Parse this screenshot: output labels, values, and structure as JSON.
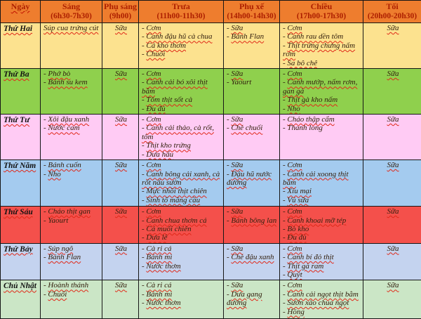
{
  "table": {
    "columns": [
      {
        "label": "Ngày",
        "time": ""
      },
      {
        "label": "Sáng",
        "time": "(6h30-7h30)"
      },
      {
        "label": "Phụ sáng",
        "time": "(9h00)"
      },
      {
        "label": "Trưa",
        "time": "(11h00-11h30)"
      },
      {
        "label": "Phụ xế",
        "time": "(14h00-14h30)"
      },
      {
        "label": "Chiều",
        "time": "(17h00-17h30)"
      },
      {
        "label": "Tối",
        "time": "(20h00-20h30)"
      }
    ],
    "rows": [
      {
        "day": "Thứ Hai",
        "color": "#FCE28F",
        "sang": [
          "Súp cua trứng cút"
        ],
        "phu_sang": [
          "Sữa"
        ],
        "trua": [
          "- Cơm",
          "- Canh đậu hũ cà chua",
          "- Cá kho thơm",
          "- Chuối"
        ],
        "phu_xe": [
          "- Sữa",
          "- Bánh Flan"
        ],
        "chieu": [
          "- Cơm",
          "- Canh rau dền tôm",
          "- Thịt trứng chưng nấm rơm",
          "- Sa bô chê"
        ],
        "toi": [
          "Sữa"
        ]
      },
      {
        "day": "Thứ Ba",
        "color": "#8FD04D",
        "sang": [
          "- Phở bò",
          "- Bánh su kem"
        ],
        "phu_sang": [
          "Sữa"
        ],
        "trua": [
          "- Cơm",
          "- Canh cải bó xôi thịt bằm",
          "- Tôm thịt sốt cà",
          "- Đu đủ"
        ],
        "phu_xe": [
          "- Sữa",
          "- Yaourt"
        ],
        "chieu": [
          "- Cơm",
          "- Canh mướp, nấm rơm, gan gà",
          "- Thịt gà kho nấm",
          "- Nho"
        ],
        "toi": [
          "Sữa"
        ]
      },
      {
        "day": "Thứ Tư",
        "color": "#FFCBF4",
        "sang": [
          "- Xôi đậu xanh",
          "- Nước cam"
        ],
        "phu_sang": [
          "Sữa"
        ],
        "trua": [
          "- Cơm",
          "- Canh cải thảo, cà rốt, tôm",
          "- Thịt kho trứng",
          "- Dưa hấu"
        ],
        "phu_xe": [
          "- Sữa",
          "- Chè chuối"
        ],
        "chieu": [
          "- Cháo thập cẩm",
          "- Thanh long"
        ],
        "toi": [
          "Sữa"
        ]
      },
      {
        "day": "Thứ Năm",
        "color": "#A4CBEF",
        "sang": [
          "- Bánh cuốn",
          "- Nho"
        ],
        "phu_sang": [
          "Sữa"
        ],
        "trua": [
          "- Cơm",
          "- Canh bông cải xanh, cà rốt nấu sườn",
          "- Mực nhồi thịt chiên",
          "- Sinh tố mãng cầu"
        ],
        "phu_xe": [
          "- Sữa",
          "- Đậu hũ nước đường"
        ],
        "chieu": [
          "- Cơm",
          "- Canh cải xoong thịt bằm",
          "- Xíu mại",
          "- Vú sữa"
        ],
        "toi": [
          "Sữa"
        ]
      },
      {
        "day": "Thứ Sáu",
        "color": "#F4504B",
        "sang": [
          "- Cháo thịt gan",
          "- Yaourt"
        ],
        "phu_sang": [
          "Sữa"
        ],
        "trua": [
          "- Cơm",
          "- Canh chua thơm cá",
          "- Cá muối chiên",
          "- Dưa lê"
        ],
        "phu_xe": [
          "- Sữa",
          "- Bánh bông lan"
        ],
        "chieu": [
          "- Cơm",
          "- Canh khoai mỡ tép",
          "- Bò kho",
          "- Đu đủ"
        ],
        "toi": [
          "Sữa"
        ]
      },
      {
        "day": "Thứ Bảy",
        "color": "#C4D3EF",
        "sang": [
          "- Súp ngô",
          "- Bánh Flan"
        ],
        "phu_sang": [
          "Sữa"
        ],
        "trua": [
          "- Cà ri cá",
          "- Bánh mì",
          "- Nước thơm"
        ],
        "phu_xe": [
          "- Sữa",
          "- Chè đậu xanh"
        ],
        "chieu": [
          "- Cơm",
          "- Canh bí đỏ thịt",
          "- Thịt gà ram",
          "- Quýt"
        ],
        "toi": [
          "Sữa"
        ]
      },
      {
        "day": "Chủ Nhật",
        "color": "#CBE6C6",
        "sang": [
          "- Hoành thánh",
          "- Chuối"
        ],
        "phu_sang": [
          "Sữa"
        ],
        "trua": [
          "- Cà ri cá",
          "- Bánh mì",
          "- Nước thơm"
        ],
        "phu_xe": [
          "- Sữa",
          "- Dưa gang đường"
        ],
        "chieu": [
          "- Cơm",
          "- Canh cải ngọt thịt bằm",
          "- Sườn xào chua ngọt",
          "- Hồng"
        ],
        "toi": [
          "Sữa"
        ]
      }
    ],
    "plain_words": [
      "Thanh long",
      "Yaourt"
    ]
  },
  "colors": {
    "header_bg": "#EE7D2E",
    "header_text": "#AD1F00",
    "row_monday": "#FCE28F",
    "row_tuesday": "#8FD04D",
    "row_wednesday": "#FFCBF4",
    "row_thursday": "#A4CBEF",
    "row_friday": "#F4504B",
    "row_saturday": "#C4D3EF",
    "row_sunday": "#CBE6C6",
    "border": "#161616",
    "squiggle": "#e02818"
  }
}
